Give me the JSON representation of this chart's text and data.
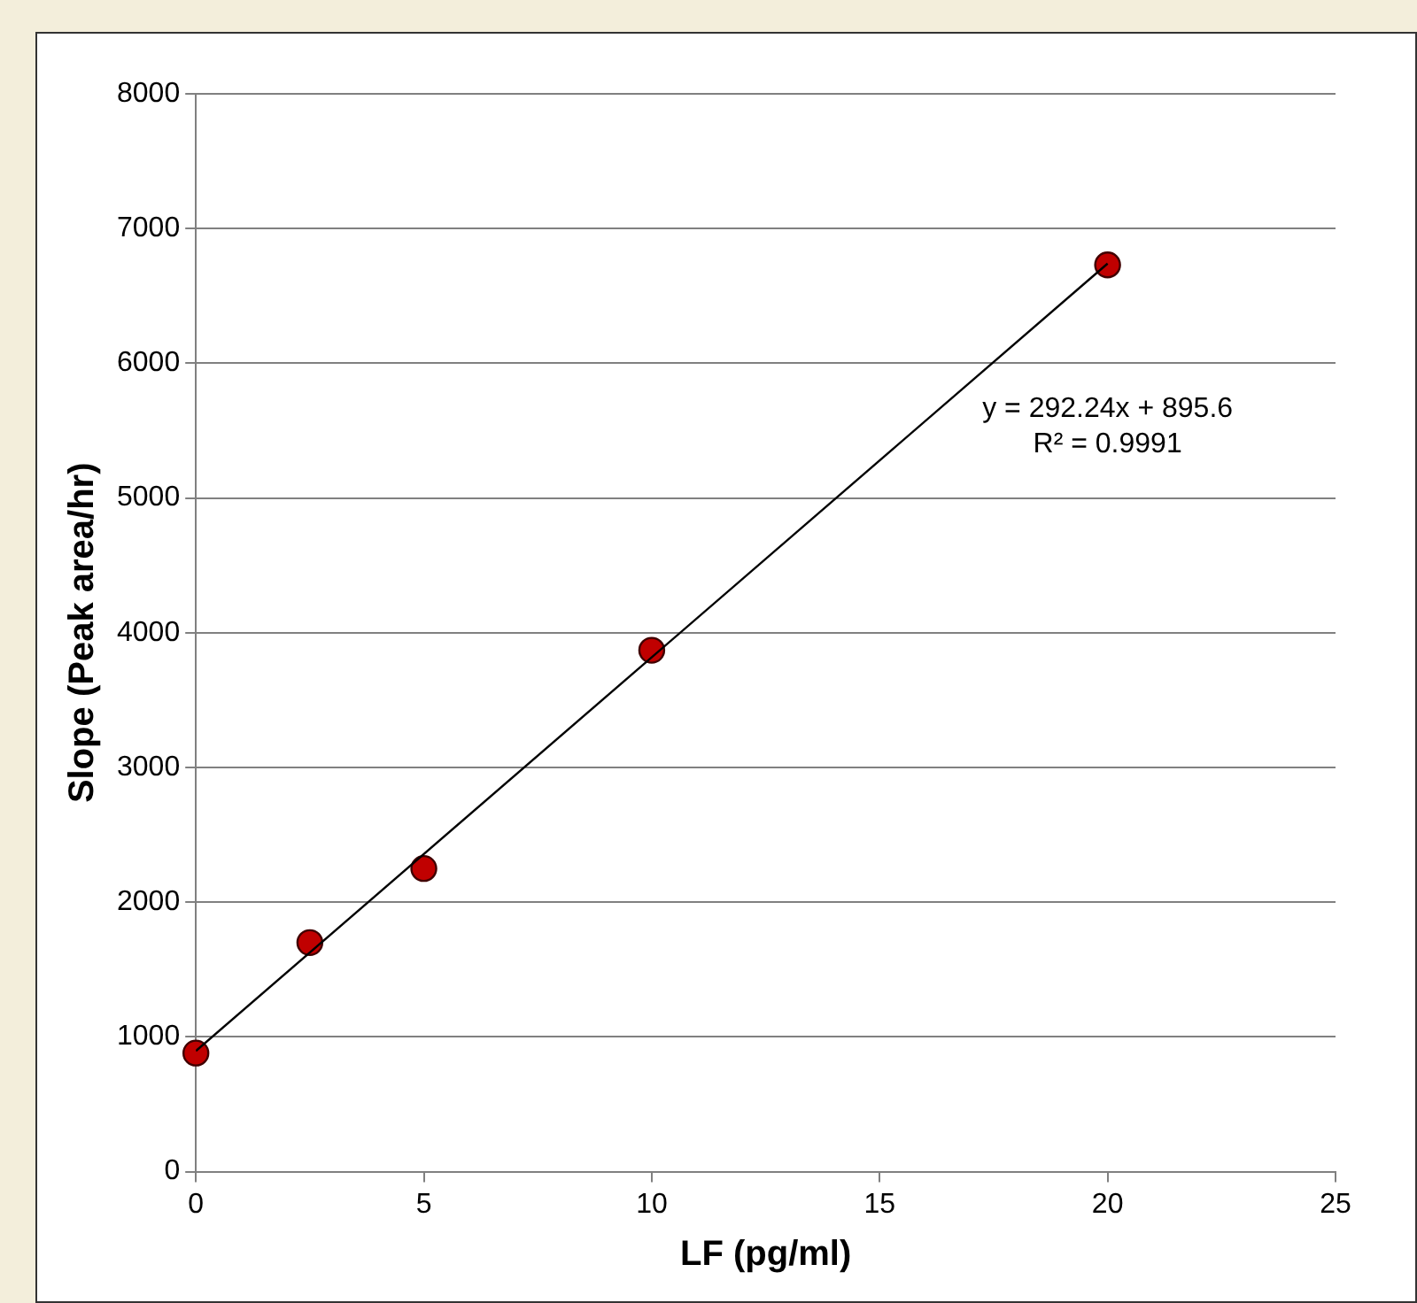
{
  "chart_data": {
    "type": "scatter",
    "xlabel": "LF (pg/ml)",
    "ylabel": "Slope (Peak area/hr)",
    "xlim": [
      0,
      25
    ],
    "xticks": [
      0,
      5,
      10,
      15,
      20,
      25
    ],
    "ylim": [
      0,
      8000
    ],
    "yticks": [
      0,
      1000,
      2000,
      3000,
      4000,
      5000,
      6000,
      7000,
      8000
    ],
    "grid": "y",
    "legend": false,
    "marker": "circle",
    "series": [
      {
        "type": "line",
        "color": "#000000",
        "marker": "none",
        "x": [
          0,
          20
        ],
        "values": [
          896,
          6740
        ]
      },
      {
        "color": "#c00000",
        "x": [
          0,
          2.5,
          5,
          10,
          20
        ],
        "values": [
          880,
          1700,
          2250,
          3870,
          6730
        ]
      }
    ],
    "annotations": [
      "y = 292.24x + 895.6",
      "R² = 0.9991"
    ]
  }
}
